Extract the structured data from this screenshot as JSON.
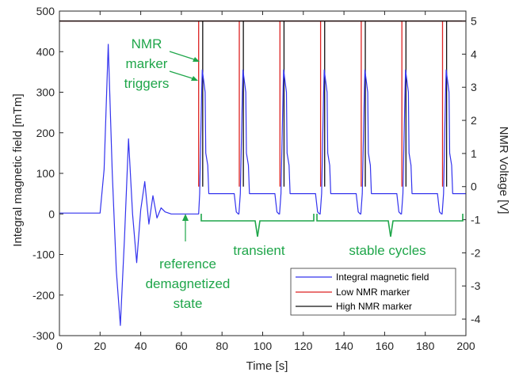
{
  "chart_data": {
    "type": "line",
    "xlabel": "Time [s]",
    "ylabel_left": "Integral magnetic field [mTm]",
    "ylabel_right": "NMR Voltage [V]",
    "xlim": [
      0,
      200
    ],
    "ylim_left": [
      -300,
      500
    ],
    "ylim_right": [
      -4.5,
      5.3
    ],
    "x_ticks": [
      "0",
      "20",
      "40",
      "60",
      "80",
      "100",
      "120",
      "140",
      "160",
      "180",
      "200"
    ],
    "y_left_ticks": [
      "-300",
      "-200",
      "-100",
      "0",
      "100",
      "200",
      "300",
      "400",
      "500"
    ],
    "y_right_ticks": [
      "-4",
      "-3",
      "-2",
      "-1",
      "0",
      "1",
      "2",
      "3",
      "4",
      "5"
    ],
    "grid": false,
    "legend_position": "bottom-right",
    "series": [
      {
        "name": "Integral magnetic field",
        "axis": "left",
        "color": "#3333ee",
        "x": [
          0,
          10,
          20,
          22,
          24,
          26,
          28,
          30,
          32,
          34,
          36,
          38,
          40,
          42,
          44,
          46,
          48,
          50,
          52,
          55,
          60,
          65,
          68.5,
          69,
          70,
          70.3,
          71.7,
          72,
          73,
          73.5,
          75,
          80,
          85,
          86,
          87,
          88,
          88.3,
          89,
          90,
          90.3,
          91.7,
          92,
          93,
          93.5,
          95,
          100,
          105,
          106,
          107,
          108,
          108.3,
          109,
          110,
          110.3,
          111.7,
          112,
          113,
          113.5,
          115,
          120,
          125,
          126,
          127,
          128,
          128.3,
          129,
          130,
          130.3,
          131.7,
          132,
          133,
          133.5,
          135,
          140,
          145,
          146,
          147,
          148,
          148.3,
          149,
          150,
          150.3,
          151.7,
          152,
          153,
          153.5,
          155,
          160,
          165,
          166,
          167,
          168,
          168.3,
          169,
          170,
          170.3,
          171.7,
          172,
          173,
          173.5,
          175,
          180,
          185,
          186,
          187,
          188,
          188.3,
          189,
          190,
          190.3,
          191.7,
          192,
          193,
          193.5,
          195,
          200
        ],
        "y": [
          2,
          2,
          2,
          110,
          418,
          100,
          -140,
          -275,
          -60,
          185,
          0,
          -120,
          10,
          80,
          -25,
          45,
          -10,
          15,
          5,
          0,
          0,
          0,
          0,
          50,
          300,
          355,
          300,
          150,
          120,
          50,
          50,
          50,
          50,
          50,
          5,
          0,
          0,
          50,
          300,
          355,
          300,
          150,
          120,
          50,
          50,
          50,
          50,
          50,
          5,
          0,
          0,
          50,
          300,
          355,
          300,
          150,
          120,
          50,
          50,
          50,
          50,
          50,
          5,
          0,
          0,
          50,
          300,
          355,
          300,
          150,
          120,
          50,
          50,
          50,
          50,
          50,
          5,
          0,
          0,
          50,
          300,
          355,
          300,
          150,
          120,
          50,
          50,
          50,
          50,
          50,
          5,
          0,
          0,
          50,
          300,
          355,
          300,
          150,
          120,
          50,
          50,
          50,
          50,
          50,
          5,
          0,
          0,
          50,
          300,
          355,
          300,
          150,
          120,
          50,
          50,
          50
        ]
      },
      {
        "name": "Low NMR marker",
        "axis": "right",
        "color": "#dd2222",
        "baseline": 5.0,
        "pulse_low": 0.0,
        "pulse_x": [
          68.5,
          88.5,
          108.5,
          128.5,
          148.5,
          168.5,
          188.5
        ]
      },
      {
        "name": "High NMR marker",
        "axis": "right",
        "color": "#111111",
        "baseline": 5.0,
        "pulse_low": 0.0,
        "pulse_x": [
          70.5,
          90.5,
          110.5,
          130.5,
          150.5,
          170.5,
          190.5
        ]
      }
    ],
    "annotations": {
      "nmr_triggers": [
        "NMR",
        "marker",
        "triggers"
      ],
      "reference": [
        "reference",
        "demagnetized",
        "state"
      ],
      "transient": "transient",
      "stable": "stable cycles"
    }
  }
}
